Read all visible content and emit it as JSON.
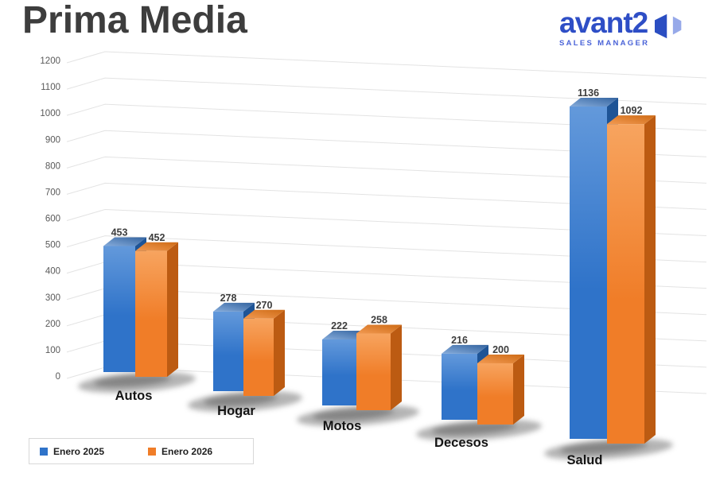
{
  "page": {
    "title": "Prima Media"
  },
  "logo": {
    "brand": "avant2",
    "subtitle": "SALES MANAGER",
    "brand_color": "#2E4EC6",
    "subtitle_color": "#4A63D8",
    "icon_dark": "#2B4EC2",
    "icon_light": "#97A9E9"
  },
  "chart_data": {
    "type": "bar",
    "style": "3d-clustered-column",
    "title": "Prima Media",
    "categories": [
      "Autos",
      "Hogar",
      "Motos",
      "Decesos",
      "Salud"
    ],
    "series": [
      {
        "name": "Enero 2025",
        "color": "#2F73C9",
        "color_light": "#6399DB",
        "color_dark": "#1E5496",
        "color_top": "#33639F",
        "color_top_light": "#86ACDB",
        "values": [
          453,
          278,
          222,
          216,
          1136
        ]
      },
      {
        "name": "Enero 2026",
        "color": "#F07D28",
        "color_light": "#F7A45F",
        "color_dark": "#BC5B12",
        "color_top": "#CE6B15",
        "color_top_light": "#F29A52",
        "values": [
          452,
          270,
          258,
          200,
          1092
        ]
      }
    ],
    "xlabel": "",
    "ylabel": "",
    "ylim": [
      0,
      1200
    ],
    "y_tick_step": 100,
    "y_ticks": [
      1200,
      1100,
      1000,
      900,
      800,
      700,
      600,
      500,
      400,
      300,
      200,
      100,
      0
    ],
    "grid": true,
    "data_labels": true,
    "legend_position": "bottom-left"
  }
}
